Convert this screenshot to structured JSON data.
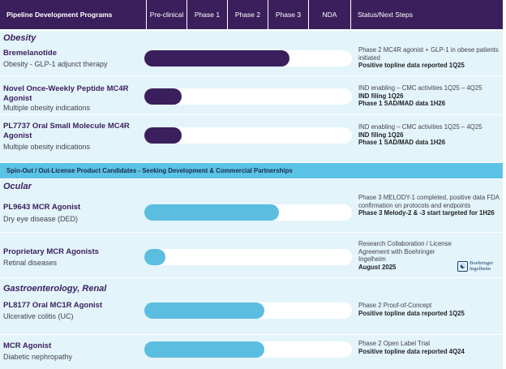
{
  "header": {
    "title": "Pipeline Development Programs",
    "phases": [
      "Pre-clinical",
      "Phase 1",
      "Phase 2",
      "Phase 3",
      "NDA"
    ],
    "status_label": "Status/Next Steps"
  },
  "sections": {
    "obesity": "Obesity",
    "ocular": "Ocular",
    "gi_renal": "Gastroenterology, Renal"
  },
  "banner": "Spin-Out / Out-License Product Candidates - Seeking Development & Commercial Partnerships",
  "programs": [
    {
      "name": "Bremelanotide",
      "indication": "Obesity - GLP-1 adjunct therapy",
      "progress": 0.7,
      "color": "#3b1f5c",
      "status": [
        "Phase 2 MC4R agonist + GLP-1 in obese patients initiated"
      ],
      "status_bold": [
        "Positive topline data reported 1Q25"
      ]
    },
    {
      "name": "Novel Once-Weekly Peptide MC4R Agonist",
      "indication": "Multiple obesity indications",
      "progress": 0.18,
      "color": "#3b1f5c",
      "status": [
        "IND enabling – CMC activities 1Q25 – 4Q25"
      ],
      "status_bold": [
        "IND filing 1Q26",
        "Phase 1 SAD/MAD data 1H26"
      ]
    },
    {
      "name": "PL7737 Oral Small Molecule MC4R Agonist",
      "indication": "Multiple obesity indications",
      "progress": 0.18,
      "color": "#3b1f5c",
      "status": [
        "IND enabling – CMC activities 1Q25 – 4Q25"
      ],
      "status_bold": [
        "IND filing 1Q26",
        "Phase 1 SAD/MAD data 1H26"
      ]
    },
    {
      "name": "PL9643 MCR Agonist",
      "indication": "Dry eye disease (DED)",
      "progress": 0.65,
      "color": "#5bbde0",
      "status": [
        "Phase 3 MELODY-1 completed, positive data FDA confirmation on protocols and endpoints"
      ],
      "status_bold": [
        "Phase 3 Melody-2 & -3 start targeted for 1H26"
      ]
    },
    {
      "name": "Proprietary MCR Agonists",
      "indication": "Retinal diseases",
      "progress": 0.1,
      "color": "#5bbde0",
      "status": [
        "Research Collaboration / License Agreement with Boehringer Ingelheim"
      ],
      "status_bold": [
        "August 2025"
      ]
    },
    {
      "name": "PL8177 Oral MC1R Agonist",
      "indication": "Ulcerative colitis (UC)",
      "progress": 0.58,
      "color": "#5bbde0",
      "status": [
        "Phase 2 Proof-of-Concept"
      ],
      "status_bold": [
        "Positive topline data reported 1Q25"
      ]
    },
    {
      "name": "MCR Agonist",
      "indication": "Diabetic nephropathy",
      "progress": 0.58,
      "color": "#5bbde0",
      "status": [
        "Phase 2 Open Label Trial"
      ],
      "status_bold": [
        "Positive topline data reported 4Q24"
      ]
    }
  ],
  "logo": {
    "line1": "Boehringer",
    "line2": "Ingelheim"
  }
}
